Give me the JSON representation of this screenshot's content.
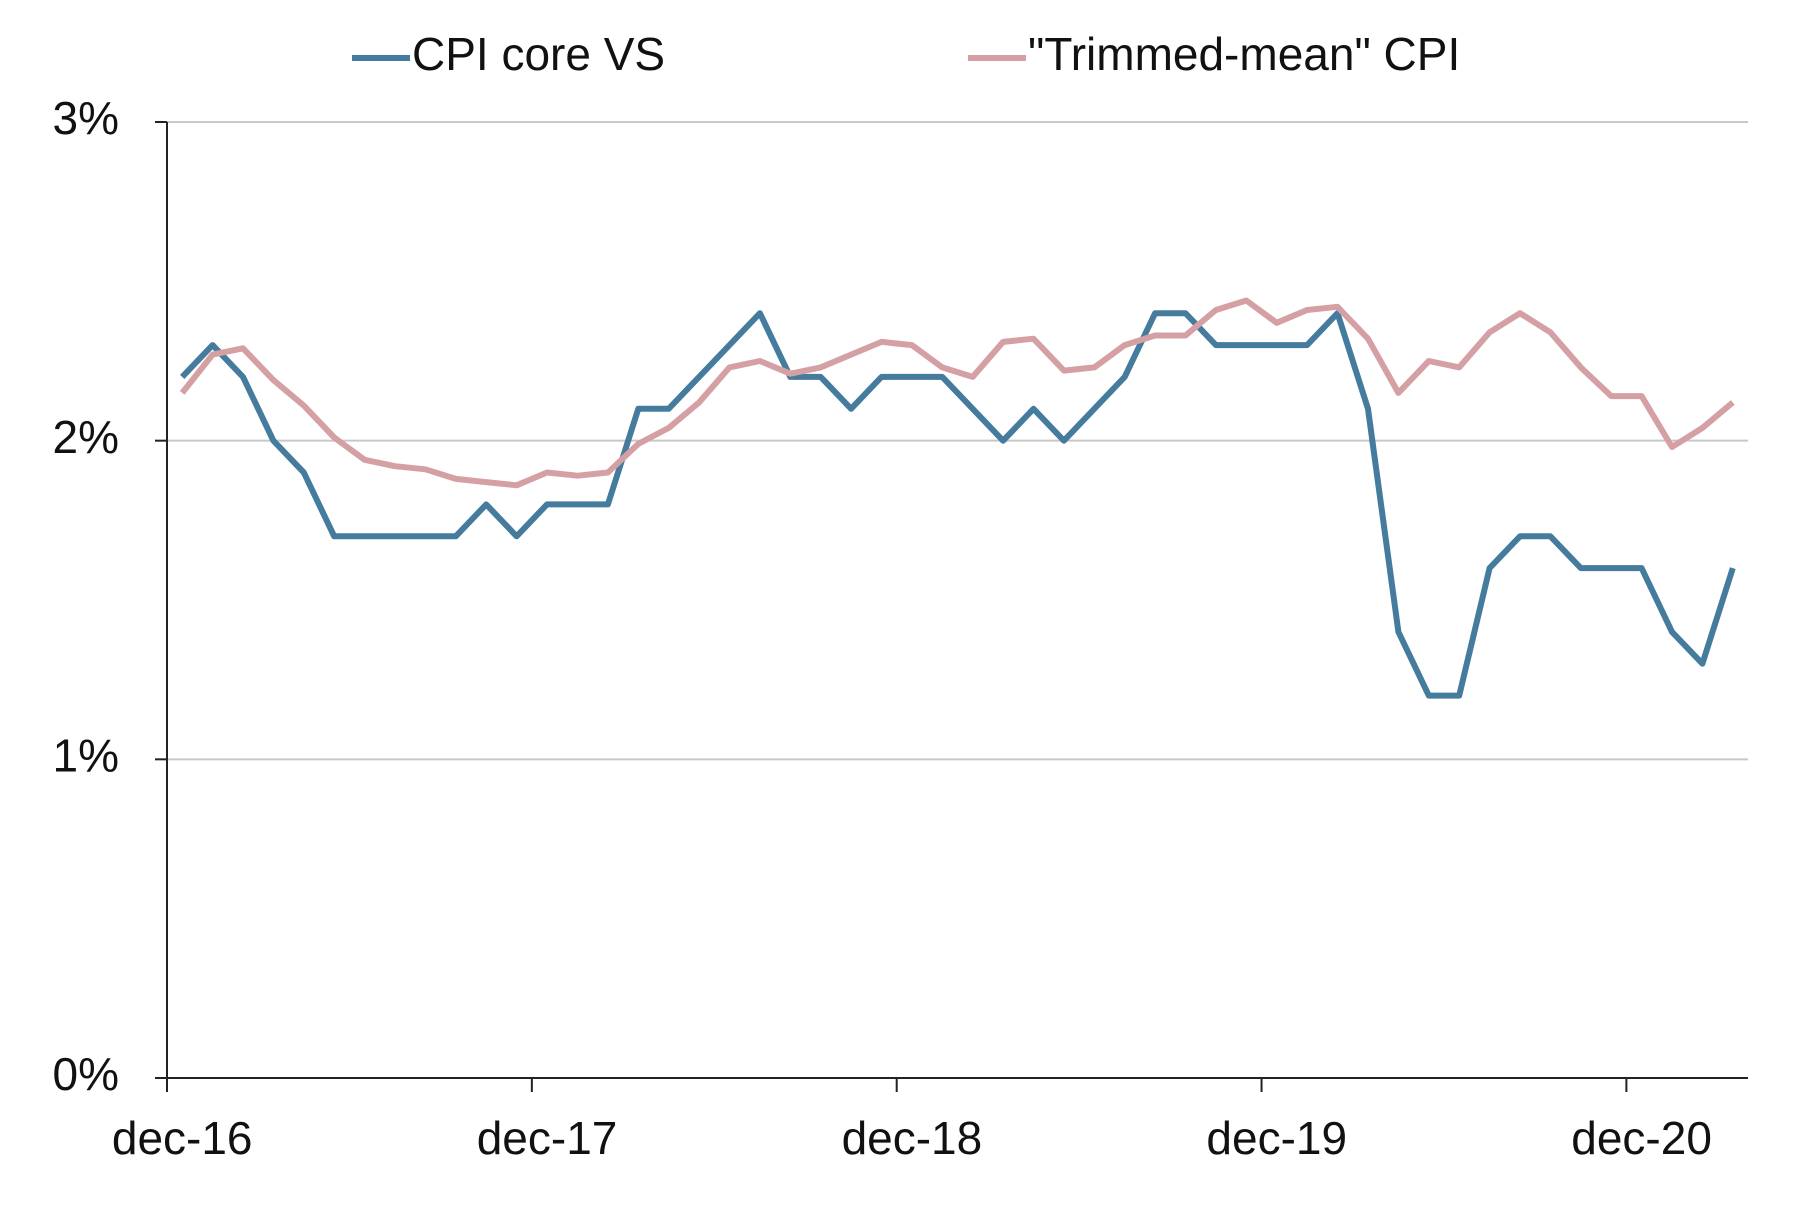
{
  "chart_data": {
    "type": "line",
    "categories": [
      "dec-16",
      null,
      null,
      null,
      null,
      null,
      null,
      null,
      null,
      null,
      null,
      null,
      "dec-17",
      null,
      null,
      null,
      null,
      null,
      null,
      null,
      null,
      null,
      null,
      null,
      "dec-18",
      null,
      null,
      null,
      null,
      null,
      null,
      null,
      null,
      null,
      null,
      null,
      "dec-19",
      null,
      null,
      null,
      null,
      null,
      null,
      null,
      null,
      null,
      null,
      null,
      "dec-20",
      null,
      null,
      null
    ],
    "series": [
      {
        "name": "CPI core VS",
        "color": "#457b9d",
        "values": [
          2.2,
          2.3,
          2.2,
          2.0,
          1.9,
          1.7,
          1.7,
          1.7,
          1.7,
          1.7,
          1.8,
          1.7,
          1.8,
          1.8,
          1.8,
          2.1,
          2.1,
          2.2,
          2.3,
          2.4,
          2.2,
          2.2,
          2.1,
          2.2,
          2.2,
          2.2,
          2.1,
          2.0,
          2.1,
          2.0,
          2.1,
          2.2,
          2.4,
          2.4,
          2.3,
          2.3,
          2.3,
          2.3,
          2.4,
          2.1,
          1.4,
          1.2,
          1.2,
          1.6,
          1.7,
          1.7,
          1.6,
          1.6,
          1.6,
          1.4,
          1.3,
          1.6
        ]
      },
      {
        "name": "\"Trimmed-mean\" CPI",
        "color": "#d4a0a4",
        "values": [
          2.15,
          2.27,
          2.29,
          2.19,
          2.11,
          2.01,
          1.94,
          1.92,
          1.91,
          1.88,
          1.87,
          1.86,
          1.9,
          1.89,
          1.9,
          1.99,
          2.04,
          2.12,
          2.23,
          2.25,
          2.21,
          2.23,
          2.27,
          2.31,
          2.3,
          2.23,
          2.2,
          2.31,
          2.32,
          2.22,
          2.23,
          2.3,
          2.33,
          2.33,
          2.41,
          2.44,
          2.37,
          2.41,
          2.42,
          2.32,
          2.15,
          2.25,
          2.23,
          2.34,
          2.4,
          2.34,
          2.23,
          2.14,
          2.14,
          1.98,
          2.04,
          2.12
        ]
      }
    ],
    "ylim": [
      0,
      3
    ],
    "yticks": [
      {
        "value": 0,
        "label": "0%"
      },
      {
        "value": 1,
        "label": "1%"
      },
      {
        "value": 2,
        "label": "2%"
      },
      {
        "value": 3,
        "label": "3%"
      }
    ],
    "grid": true,
    "legend": "top"
  }
}
